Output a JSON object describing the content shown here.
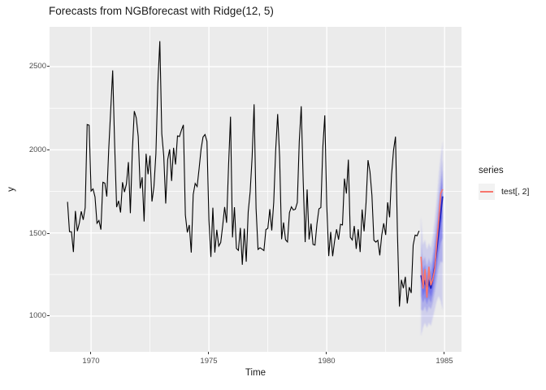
{
  "title": "Forecasts from NGBforecast with Ridge(12, 5)",
  "axes": {
    "x_title": "Time",
    "y_title": "y",
    "x_ticks": [
      "1970",
      "1975",
      "1980",
      "1985"
    ],
    "y_ticks": [
      "2500",
      "2000",
      "1500",
      "1000"
    ]
  },
  "legend": {
    "title": "series",
    "items": [
      {
        "label": "test[, 2]",
        "color": "#F8766D"
      }
    ]
  },
  "colors": {
    "panel_background": "#EBEBEB",
    "gridline": "#FFFFFF",
    "observed_line": "#000000",
    "test_line": "#F8766D",
    "forecast_mean_line": "#2323BE",
    "forecast_fan": "#4646EB",
    "tick_label": "#4D4D4D",
    "legend_key_background": "#F2F2F2"
  },
  "chart_data": {
    "type": "line",
    "title": "Forecasts from NGBforecast with Ridge(12, 5)",
    "xlabel": "Time",
    "ylabel": "y",
    "x_range": [
      1968.238,
      1985.717
    ],
    "y_range": [
      785,
      2740
    ],
    "grid": true,
    "legend_position": "right",
    "x_major_gridlines": [
      1970,
      1975,
      1980,
      1985
    ],
    "x_minor_gridlines": [
      1972.5,
      1977.5,
      1982.5
    ],
    "y_major_gridlines": [
      1000,
      1500,
      2000,
      2500
    ],
    "y_minor_gridlines": [
      1250,
      1750,
      2250
    ],
    "time_step": 0.0833333,
    "series": [
      {
        "name": "observed",
        "color": "#000000",
        "width": 1.1,
        "time_start": 1969.0,
        "values": [
          1687,
          1508,
          1507,
          1385,
          1632,
          1511,
          1559,
          1630,
          1579,
          1653,
          2152,
          2148,
          1752,
          1765,
          1717,
          1558,
          1575,
          1520,
          1805,
          1800,
          1719,
          2008,
          2242,
          2478,
          2030,
          1655,
          1693,
          1623,
          1805,
          1746,
          1795,
          1926,
          1619,
          1992,
          2233,
          2192,
          2080,
          1768,
          1835,
          1569,
          1976,
          1853,
          1965,
          1689,
          1778,
          1976,
          2397,
          2654,
          2097,
          1963,
          1677,
          1941,
          2003,
          1813,
          2012,
          1912,
          2084,
          2080,
          2118,
          2150,
          1608,
          1503,
          1548,
          1382,
          1731,
          1798,
          1779,
          1887,
          2004,
          2077,
          2092,
          2051,
          1577,
          1356,
          1652,
          1382,
          1519,
          1421,
          1442,
          1543,
          1656,
          1561,
          1905,
          2199,
          1473,
          1655,
          1407,
          1395,
          1530,
          1309,
          1526,
          1327,
          1627,
          1748,
          1958,
          2274,
          1648,
          1401,
          1411,
          1403,
          1394,
          1520,
          1528,
          1643,
          1515,
          1685,
          2000,
          2215,
          1956,
          1462,
          1563,
          1459,
          1446,
          1622,
          1657,
          1638,
          1643,
          1683,
          2050,
          2262,
          1813,
          1445,
          1762,
          1461,
          1556,
          1431,
          1427,
          1554,
          1645,
          1653,
          2016,
          2207,
          1665,
          1361,
          1506,
          1360,
          1453,
          1522,
          1460,
          1552,
          1548,
          1827,
          1737,
          1941,
          1474,
          1458,
          1542,
          1404,
          1522,
          1385,
          1641,
          1510,
          1681,
          1938,
          1868,
          1726,
          1456,
          1445,
          1456,
          1365,
          1487,
          1558,
          1488,
          1684,
          1594,
          1850,
          1998,
          2079,
          1494,
          1057,
          1218,
          1168,
          1236,
          1076,
          1174,
          1139,
          1427,
          1487,
          1483,
          1513
        ]
      },
      {
        "name": "forecast_mean",
        "color": "#2323BE",
        "width": 1.8,
        "time_start": 1984.0,
        "values": [
          1245,
          1175,
          1215,
          1155,
          1205,
          1165,
          1225,
          1300,
          1395,
          1505,
          1615,
          1720
        ]
      },
      {
        "name": "test[, 2]",
        "color": "#F8766D",
        "width": 1.6,
        "time_start": 1984.0,
        "values": [
          1357,
          1165,
          1282,
          1110,
          1297,
          1185,
          1222,
          1284,
          1444,
          1575,
          1737,
          1763
        ]
      }
    ],
    "forecast_bands": {
      "time_start": 1984.0,
      "levels": [
        {
          "level": "95%",
          "opacity": 0.16,
          "low": [
            880,
            930,
            960,
            930,
            960,
            940,
            990,
            1040,
            1090,
            1120,
            1090,
            1035
          ],
          "high": [
            1600,
            1430,
            1460,
            1400,
            1440,
            1410,
            1480,
            1580,
            1700,
            1840,
            1960,
            2050
          ]
        },
        {
          "level": "80%",
          "opacity": 0.24,
          "low": [
            1040,
            1030,
            1060,
            1020,
            1060,
            1040,
            1080,
            1140,
            1210,
            1290,
            1330,
            1320
          ],
          "high": [
            1450,
            1330,
            1360,
            1300,
            1350,
            1310,
            1380,
            1470,
            1580,
            1710,
            1830,
            1940
          ]
        },
        {
          "level": "60%",
          "opacity": 0.3,
          "low": [
            1120,
            1080,
            1110,
            1070,
            1110,
            1080,
            1130,
            1200,
            1280,
            1370,
            1440,
            1470
          ],
          "high": [
            1370,
            1280,
            1310,
            1250,
            1300,
            1260,
            1330,
            1410,
            1510,
            1630,
            1760,
            1880
          ]
        },
        {
          "level": "40%",
          "opacity": 0.38,
          "low": [
            1180,
            1120,
            1155,
            1105,
            1150,
            1115,
            1170,
            1245,
            1330,
            1430,
            1530,
            1590
          ],
          "high": [
            1310,
            1230,
            1265,
            1210,
            1260,
            1220,
            1280,
            1360,
            1460,
            1580,
            1700,
            1830
          ]
        }
      ]
    }
  }
}
